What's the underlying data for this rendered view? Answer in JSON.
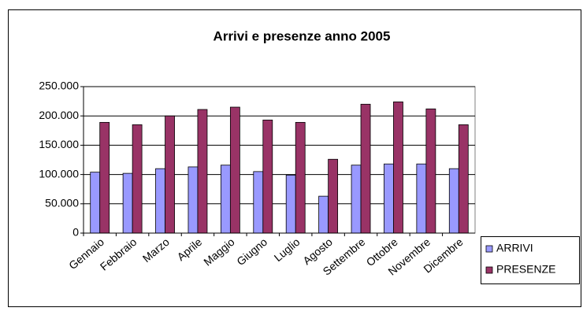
{
  "chart_data": {
    "type": "bar",
    "title": "Arrivi e presenze anno 2005",
    "categories": [
      "Gennaio",
      "Febbraio",
      "Marzo",
      "Aprile",
      "Maggio",
      "Giugno",
      "Luglio",
      "Agosto",
      "Settembre",
      "Ottobre",
      "Novembre",
      "Dicembre"
    ],
    "series": [
      {
        "name": "ARRIVI",
        "color": "#9999ff",
        "values": [
          104000,
          102000,
          110000,
          113000,
          116000,
          105000,
          99000,
          63000,
          116000,
          118000,
          118000,
          110000
        ]
      },
      {
        "name": "PRESENZE",
        "color": "#993366",
        "values": [
          189000,
          185000,
          200000,
          211000,
          215000,
          193000,
          189000,
          126000,
          220000,
          224000,
          212000,
          185000
        ]
      }
    ],
    "ylim": [
      0,
      250000
    ],
    "yticks": [
      0,
      {
        "value": 50000,
        "label": "50.000"
      },
      {
        "value": 100000,
        "label": "100.000"
      },
      {
        "value": 150000,
        "label": "150.000"
      },
      {
        "value": 200000,
        "label": "200.000"
      },
      {
        "value": 250000,
        "label": "250.000"
      }
    ],
    "grid": true,
    "legend": "right"
  }
}
